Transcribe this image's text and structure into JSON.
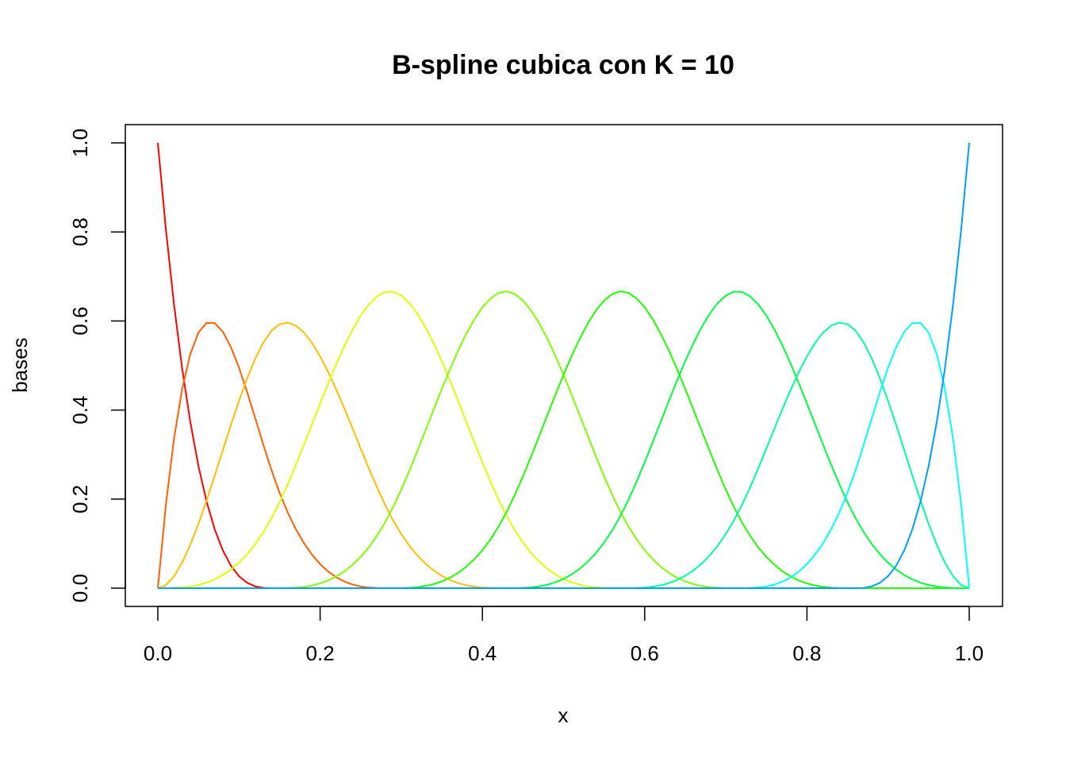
{
  "chart_data": {
    "type": "line",
    "title": "B-spline cubica con K = 10",
    "xlabel": "x",
    "ylabel": "bases",
    "xlim": [
      0,
      1
    ],
    "ylim": [
      0,
      1
    ],
    "x_ticks": [
      "0.0",
      "0.2",
      "0.4",
      "0.6",
      "0.8",
      "1.0"
    ],
    "y_ticks": [
      "0.0",
      "0.2",
      "0.4",
      "0.6",
      "0.8",
      "1.0"
    ],
    "grid": false,
    "legend": "none",
    "degree": 3,
    "knots": [
      0,
      0,
      0,
      0,
      0.142857,
      0.285714,
      0.428571,
      0.571429,
      0.714286,
      0.857143,
      1,
      1,
      1,
      1
    ],
    "x_sample": {
      "from": 0,
      "to": 1,
      "count": 101
    },
    "series": [
      {
        "color": "#ff0000",
        "peak_x": 0.0,
        "peak_y": 1.0
      },
      {
        "color": "#ff6000",
        "peak_x": 0.065,
        "peak_y": 0.595
      },
      {
        "color": "#ffbf00",
        "peak_x": 0.16,
        "peak_y": 0.595
      },
      {
        "color": "#dfff00",
        "peak_x": 0.286,
        "peak_y": 0.667
      },
      {
        "color": "#80ff00",
        "peak_x": 0.429,
        "peak_y": 0.667
      },
      {
        "color": "#20ff00",
        "peak_x": 0.571,
        "peak_y": 0.667
      },
      {
        "color": "#00ff40",
        "peak_x": 0.714,
        "peak_y": 0.667
      },
      {
        "color": "#00ff9f",
        "peak_x": 0.84,
        "peak_y": 0.595
      },
      {
        "color": "#00ffff",
        "peak_x": 0.935,
        "peak_y": 0.595
      },
      {
        "color": "#009fff",
        "peak_x": 1.0,
        "peak_y": 1.0
      }
    ]
  }
}
